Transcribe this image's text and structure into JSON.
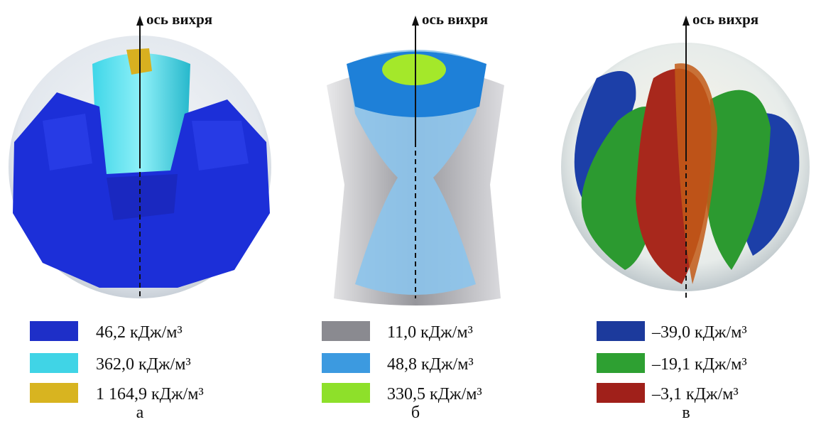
{
  "panels": [
    {
      "axis_label": "ось вихря",
      "legend": [
        "46,2 кДж/м³",
        "362,0 кДж/м³",
        "1 164,9 кДж/м³"
      ],
      "caption": "а"
    },
    {
      "axis_label": "ось вихря",
      "legend": [
        "11,0 кДж/м³",
        "48,8 кДж/м³",
        "330,5 кДж/м³"
      ],
      "caption": "б"
    },
    {
      "axis_label": "ось вихря",
      "legend": [
        "–39,0 кДж/м³",
        "–19,1 кДж/м³",
        "–3,1 кДж/м³"
      ],
      "caption": "в"
    }
  ]
}
